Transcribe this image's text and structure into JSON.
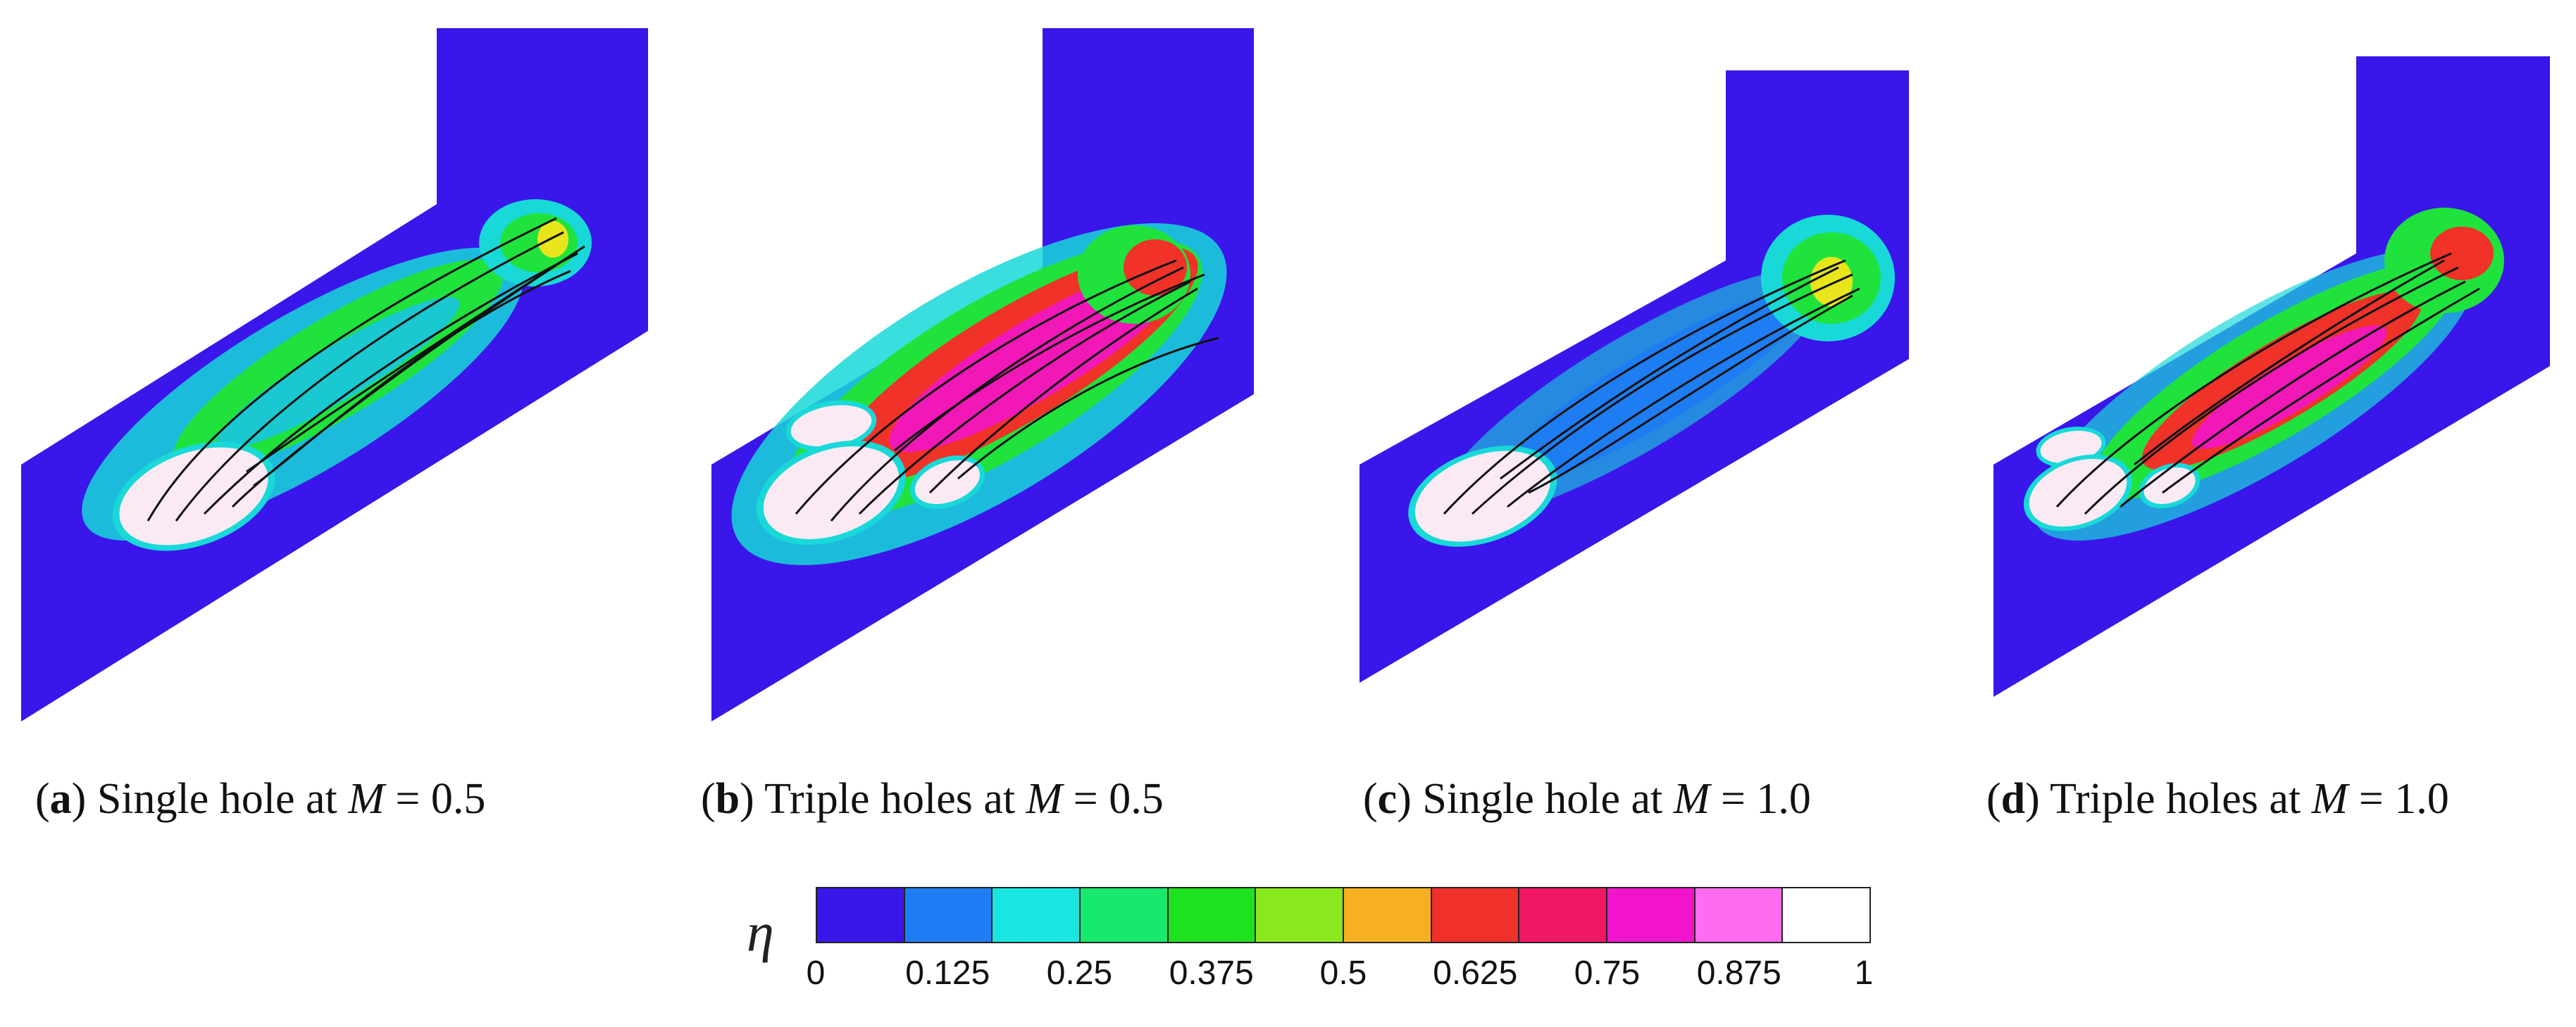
{
  "panels": [
    {
      "tag": "a",
      "open": "(",
      "close": ")",
      "text_before": " Single hole at ",
      "var": "M",
      "value": " = 0.5"
    },
    {
      "tag": "b",
      "open": "(",
      "close": ")",
      "text_before": " Triple holes at ",
      "var": "M",
      "value": " = 0.5"
    },
    {
      "tag": "c",
      "open": "(",
      "close": ")",
      "text_before": " Single hole at ",
      "var": "M",
      "value": " = 1.0"
    },
    {
      "tag": "d",
      "open": "(",
      "close": ")",
      "text_before": " Triple holes at ",
      "var": "M",
      "value": " = 1.0"
    }
  ],
  "legend": {
    "symbol": "η",
    "ticks": [
      "0",
      "0.125",
      "0.25",
      "0.375",
      "0.5",
      "0.625",
      "0.75",
      "0.875",
      "1"
    ],
    "colors": [
      "#3a17e8",
      "#1e7df2",
      "#19e6e0",
      "#19e86e",
      "#1ee21e",
      "#8ae81e",
      "#f7b021",
      "#f0302a",
      "#f01764",
      "#f214cc",
      "#ff6cf0",
      "#ffffff"
    ]
  },
  "colors": {
    "wall": "#3a16ea",
    "halo": "#19d8d8",
    "green": "#1fe33c",
    "yellow": "#e8e51c",
    "red": "#f03228",
    "magenta": "#f218b8",
    "hole": "#fbeaf4",
    "streamline": "#111111"
  }
}
